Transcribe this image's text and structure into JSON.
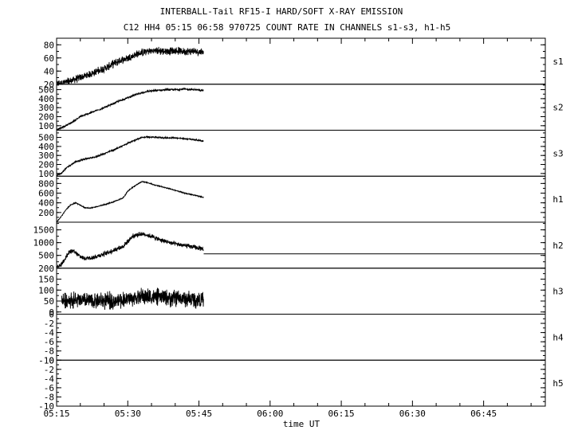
{
  "title": "INTERBALL-Tail RF15-I HARD/SOFT X-RAY EMISSION",
  "subtitle": "C12 HH4 05:15 06:58 970725  COUNT RATE IN CHANNELS s1-s3, h1-h5",
  "xlabel": "time UT",
  "chart_data": {
    "type": "line",
    "title": "INTERBALL-Tail RF15-I HARD/SOFT X-RAY EMISSION",
    "subtitle": "C12 HH4 05:15 06:58 970725  COUNT RATE IN CHANNELS s1-s3, h1-h5",
    "xlabel": "time UT",
    "xlim": [
      "05:15",
      "06:58"
    ],
    "x_ticks": [
      "05:15",
      "05:30",
      "05:45",
      "06:00",
      "06:15",
      "06:30",
      "06:45"
    ],
    "grid": false,
    "data_end": "05:46",
    "panels": [
      {
        "name": "s1",
        "ylim": [
          20,
          90
        ],
        "yticks": [
          "20",
          "40",
          "60",
          "80"
        ],
        "ytick_values": [
          20,
          40,
          60,
          80
        ],
        "noise": 7,
        "points": [
          [
            "05:15",
            20
          ],
          [
            "05:17",
            23
          ],
          [
            "05:20",
            30
          ],
          [
            "05:23",
            38
          ],
          [
            "05:26",
            47
          ],
          [
            "05:28",
            55
          ],
          [
            "05:30",
            60
          ],
          [
            "05:32",
            66
          ],
          [
            "05:34",
            70
          ],
          [
            "05:36",
            71
          ],
          [
            "05:38",
            70
          ],
          [
            "05:40",
            71
          ],
          [
            "05:42",
            70
          ],
          [
            "05:44",
            70
          ],
          [
            "05:46",
            69
          ]
        ]
      },
      {
        "name": "s2",
        "ylim": [
          50,
          560
        ],
        "yticks": [
          "100",
          "200",
          "300",
          "400",
          "500"
        ],
        "ytick_values": [
          100,
          200,
          300,
          400,
          500
        ],
        "noise": 12,
        "points": [
          [
            "05:15",
            60
          ],
          [
            "05:16",
            75
          ],
          [
            "05:18",
            130
          ],
          [
            "05:20",
            200
          ],
          [
            "05:23",
            260
          ],
          [
            "05:26",
            320
          ],
          [
            "05:28",
            370
          ],
          [
            "05:30",
            410
          ],
          [
            "05:32",
            450
          ],
          [
            "05:34",
            480
          ],
          [
            "05:36",
            490
          ],
          [
            "05:38",
            500
          ],
          [
            "05:40",
            500
          ],
          [
            "05:42",
            505
          ],
          [
            "05:44",
            500
          ],
          [
            "05:46",
            490
          ]
        ]
      },
      {
        "name": "s3",
        "ylim": [
          70,
          580
        ],
        "yticks": [
          "100",
          "200",
          "300",
          "400",
          "500"
        ],
        "ytick_values": [
          100,
          200,
          300,
          400,
          500
        ],
        "noise": 10,
        "points": [
          [
            "05:15",
            80
          ],
          [
            "05:16",
            100
          ],
          [
            "05:17",
            160
          ],
          [
            "05:19",
            230
          ],
          [
            "05:21",
            260
          ],
          [
            "05:23",
            280
          ],
          [
            "05:25",
            320
          ],
          [
            "05:27",
            360
          ],
          [
            "05:29",
            410
          ],
          [
            "05:31",
            460
          ],
          [
            "05:33",
            500
          ],
          [
            "05:35",
            505
          ],
          [
            "05:38",
            495
          ],
          [
            "05:40",
            495
          ],
          [
            "05:42",
            485
          ],
          [
            "05:44",
            475
          ],
          [
            "05:46",
            460
          ]
        ]
      },
      {
        "name": "h1",
        "ylim": [
          0,
          950
        ],
        "yticks": [
          "200",
          "400",
          "600",
          "800"
        ],
        "ytick_values": [
          200,
          400,
          600,
          800
        ],
        "noise": 12,
        "points": [
          [
            "05:15",
            0
          ],
          [
            "05:16",
            120
          ],
          [
            "05:17",
            260
          ],
          [
            "05:18",
            360
          ],
          [
            "05:19",
            400
          ],
          [
            "05:20",
            350
          ],
          [
            "05:21",
            300
          ],
          [
            "05:22",
            290
          ],
          [
            "05:23",
            310
          ],
          [
            "05:25",
            360
          ],
          [
            "05:27",
            420
          ],
          [
            "05:28",
            460
          ],
          [
            "05:29",
            500
          ],
          [
            "05:30",
            640
          ],
          [
            "05:31",
            720
          ],
          [
            "05:32",
            780
          ],
          [
            "05:33",
            840
          ],
          [
            "05:34",
            820
          ],
          [
            "05:36",
            760
          ],
          [
            "05:38",
            710
          ],
          [
            "05:40",
            660
          ],
          [
            "05:42",
            600
          ],
          [
            "05:44",
            560
          ],
          [
            "05:46",
            510
          ]
        ]
      },
      {
        "name": "h2",
        "ylim": [
          0,
          1800
        ],
        "yticks": [
          "500",
          "1000",
          "1500"
        ],
        "ytick_values": [
          500,
          1000,
          1500
        ],
        "noise": 110,
        "baseline": 560,
        "points": [
          [
            "05:15",
            0
          ],
          [
            "05:16",
            150
          ],
          [
            "05:17",
            450
          ],
          [
            "05:18",
            700
          ],
          [
            "05:19",
            600
          ],
          [
            "05:20",
            450
          ],
          [
            "05:21",
            380
          ],
          [
            "05:23",
            430
          ],
          [
            "05:25",
            560
          ],
          [
            "05:27",
            700
          ],
          [
            "05:29",
            850
          ],
          [
            "05:30",
            1050
          ],
          [
            "05:31",
            1250
          ],
          [
            "05:33",
            1350
          ],
          [
            "05:35",
            1250
          ],
          [
            "05:37",
            1100
          ],
          [
            "05:40",
            950
          ],
          [
            "05:43",
            850
          ],
          [
            "05:46",
            750
          ]
        ]
      },
      {
        "name": "h3",
        "ylim": [
          -10,
          200
        ],
        "yticks": [
          "0",
          "50",
          "100",
          "150",
          "200"
        ],
        "ytick_values": [
          0,
          50,
          100,
          150,
          200
        ],
        "noise": 45,
        "data_start": "05:16",
        "points": [
          [
            "05:16",
            55
          ],
          [
            "05:20",
            52
          ],
          [
            "05:24",
            50
          ],
          [
            "05:28",
            52
          ],
          [
            "05:30",
            60
          ],
          [
            "05:33",
            70
          ],
          [
            "05:36",
            68
          ],
          [
            "05:40",
            62
          ],
          [
            "05:43",
            58
          ],
          [
            "05:46",
            55
          ]
        ]
      },
      {
        "name": "h4",
        "ylim": [
          -10,
          0
        ],
        "yticks": [
          "-10",
          "-8",
          "-6",
          "-4",
          "-2",
          "0"
        ],
        "ytick_values": [
          -10,
          -8,
          -6,
          -4,
          -2,
          0
        ],
        "points": []
      },
      {
        "name": "h5",
        "ylim": [
          -10,
          0
        ],
        "yticks": [
          "-10",
          "-8",
          "-6",
          "-4",
          "-2",
          "0"
        ],
        "ytick_values": [
          -10,
          -8,
          -6,
          -4,
          -2,
          0
        ],
        "points": []
      }
    ]
  }
}
